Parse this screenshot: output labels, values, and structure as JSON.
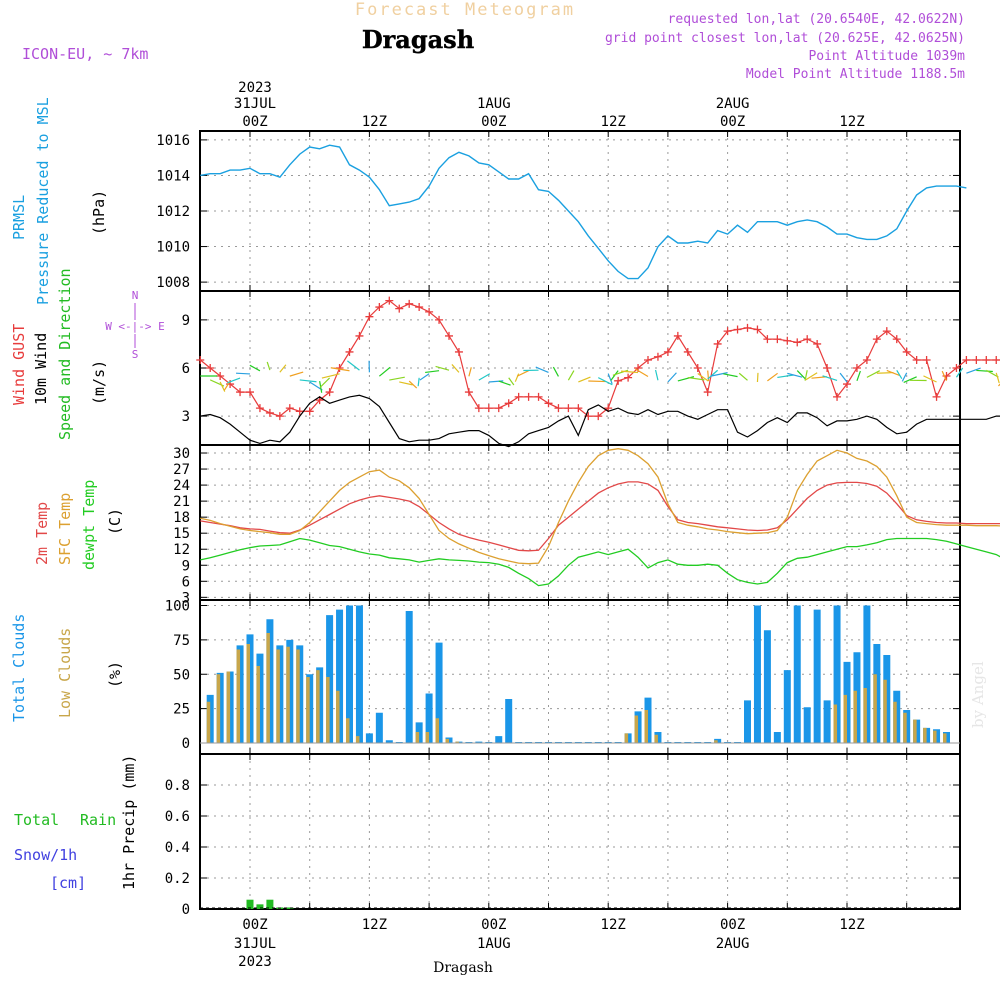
{
  "header": {
    "product": "Forecast Meteogram",
    "location": "Dragash",
    "model": "ICON-EU, ~ 7km",
    "requested": "requested lon,lat (20.6540E, 42.0622N)",
    "gridpoint": "grid point closest lon,lat (20.625E, 42.0625N)",
    "point_alt": "Point Altitude 1039m",
    "model_alt": "Model Point Altitude 1188.5m",
    "watermark": "by Angel",
    "footer_location": "Dragash"
  },
  "time_axis": {
    "top_year": "2023",
    "top_date": "31JUL",
    "ticks": [
      {
        "h": 0,
        "hour": "00Z",
        "date": "31JUL",
        "year": "2023"
      },
      {
        "h": 12,
        "hour": "12Z",
        "date": "",
        "year": ""
      },
      {
        "h": 24,
        "hour": "00Z",
        "date": "1AUG",
        "year": ""
      },
      {
        "h": 36,
        "hour": "12Z",
        "date": "",
        "year": ""
      },
      {
        "h": 48,
        "hour": "00Z",
        "date": "2AUG",
        "year": ""
      },
      {
        "h": 60,
        "hour": "12Z",
        "date": "",
        "year": ""
      }
    ]
  },
  "panel_labels": {
    "pressure": {
      "name": "PRMSL",
      "desc": "Pressure Reduced to MSL",
      "unit": "(hPa)"
    },
    "wind": {
      "gust": "Wind GUST",
      "wind": "10m Wind",
      "dir": "Speed and Direction",
      "unit": "(m/s)",
      "compass_n": "N",
      "compass_ew": "W <-|-> E",
      "compass_s": "S"
    },
    "temp": {
      "t2m": "2m Temp",
      "sfc": "SFC Temp",
      "dew": "dewpt Temp",
      "unit": "(C)"
    },
    "clouds": {
      "total": "Total Clouds",
      "low": "Low Clouds",
      "unit": "(%)"
    },
    "precip": {
      "total": "Total",
      "rain": "Rain",
      "snow": "Snow/1h",
      "cm": "[cm]",
      "axis": "1hr Precip (mm)"
    }
  },
  "colors": {
    "pressure": "#1aa0e0",
    "gust": "#e83c3c",
    "wind": "#000000",
    "t2m": "#e24848",
    "sfc": "#dca030",
    "dew": "#22cc22",
    "total_cloud": "#1a96e8",
    "low_cloud": "#c8a64a",
    "rain": "#22bb22",
    "snow": "#4040e0",
    "purple": "#b04ed8"
  },
  "chart_data": [
    {
      "type": "line",
      "title": "PRMSL Pressure Reduced to MSL",
      "ylabel": "(hPa)",
      "ylim": [
        1007.5,
        1016.5
      ],
      "yticks": [
        1008,
        1010,
        1012,
        1014,
        1016
      ],
      "x_hours": [
        -5,
        -4,
        -3,
        -2,
        -1,
        0,
        1,
        2,
        3,
        4,
        5,
        6,
        7,
        8,
        9,
        10,
        11,
        12,
        13,
        14,
        15,
        16,
        17,
        18,
        19,
        20,
        21,
        22,
        23,
        24,
        25,
        26,
        27,
        28,
        29,
        30,
        31,
        32,
        33,
        34,
        35,
        36,
        37,
        38,
        39,
        40,
        41,
        42,
        43,
        44,
        45,
        46,
        47,
        48,
        49,
        50,
        51,
        52,
        53,
        54,
        55,
        56,
        57,
        58,
        59,
        60,
        61,
        62,
        63,
        64,
        65,
        66,
        67,
        68,
        69,
        70,
        71,
        72,
        73,
        74,
        75,
        76
      ],
      "series": [
        {
          "name": "PRMSL",
          "values": [
            1014.0,
            1014.1,
            1014.1,
            1014.3,
            1014.3,
            1014.4,
            1014.1,
            1014.1,
            1013.9,
            1014.6,
            1015.2,
            1015.6,
            1015.5,
            1015.7,
            1015.6,
            1014.6,
            1014.3,
            1013.9,
            1013.2,
            1012.3,
            1012.4,
            1012.5,
            1012.7,
            1013.4,
            1014.4,
            1015.0,
            1015.3,
            1015.1,
            1014.7,
            1014.6,
            1014.2,
            1013.8,
            1013.8,
            1014.1,
            1013.2,
            1013.1,
            1012.6,
            1012.0,
            1011.4,
            1010.6,
            1009.9,
            1009.2,
            1008.6,
            1008.2,
            1008.2,
            1008.8,
            1010.0,
            1010.6,
            1010.2,
            1010.2,
            1010.3,
            1010.2,
            1010.9,
            1010.7,
            1011.2,
            1010.8,
            1011.4,
            1011.4,
            1011.4,
            1011.2,
            1011.4,
            1011.5,
            1011.4,
            1011.1,
            1010.7,
            1010.7,
            1010.5,
            1010.4,
            1010.4,
            1010.6,
            1011.0,
            1012.0,
            1012.9,
            1013.3,
            1013.4,
            1013.4,
            1013.4,
            1013.3
          ]
        }
      ]
    },
    {
      "type": "line",
      "title": "Wind GUST / 10m Wind Speed and Direction",
      "ylabel": "(m/s)",
      "ylim": [
        1.2,
        10.8
      ],
      "yticks": [
        3,
        6,
        9
      ],
      "x_hours": [
        -5,
        -4,
        -3,
        -2,
        -1,
        0,
        1,
        2,
        3,
        4,
        5,
        6,
        7,
        8,
        9,
        10,
        11,
        12,
        13,
        14,
        15,
        16,
        17,
        18,
        19,
        20,
        21,
        22,
        23,
        24,
        25,
        26,
        27,
        28,
        29,
        30,
        31,
        32,
        33,
        34,
        35,
        36,
        37,
        38,
        39,
        40,
        41,
        42,
        43,
        44,
        45,
        46,
        47,
        48,
        49,
        50,
        51,
        52,
        53,
        54,
        55,
        56,
        57,
        58,
        59,
        60,
        61,
        62,
        63,
        64,
        65,
        66,
        67,
        68,
        69,
        70,
        71,
        72,
        73,
        74,
        75,
        76
      ],
      "series": [
        {
          "name": "Wind GUST",
          "values": [
            6.5,
            6.0,
            5.5,
            5.0,
            4.5,
            4.5,
            3.5,
            3.2,
            3.0,
            3.5,
            3.3,
            3.3,
            4.0,
            4.5,
            6.0,
            7.0,
            8.0,
            9.2,
            9.8,
            10.2,
            9.7,
            10.0,
            9.8,
            9.5,
            9.0,
            8.0,
            7.0,
            4.5,
            3.5,
            3.5,
            3.5,
            3.8,
            4.2,
            4.2,
            4.2,
            3.8,
            3.5,
            3.5,
            3.5,
            3.0,
            3.0,
            3.5,
            5.2,
            5.4,
            6.0,
            6.5,
            6.7,
            7.0,
            8.0,
            7.0,
            6.0,
            4.5,
            7.5,
            8.3,
            8.4,
            8.5,
            8.4,
            7.8,
            7.8,
            7.7,
            7.6,
            7.8,
            7.5,
            6.0,
            4.2,
            5.0,
            6.0,
            6.5,
            7.8,
            8.3,
            7.8,
            7.0,
            6.5,
            6.5,
            4.2,
            5.5,
            6.0,
            6.5,
            6.5,
            6.5,
            6.5,
            6.5
          ]
        },
        {
          "name": "10m Wind",
          "values": [
            3.0,
            3.1,
            2.9,
            2.5,
            2.0,
            1.5,
            1.3,
            1.5,
            1.4,
            2.0,
            3.0,
            3.8,
            4.2,
            3.8,
            4.0,
            4.2,
            4.3,
            4.1,
            3.6,
            2.6,
            1.6,
            1.4,
            1.5,
            1.5,
            1.6,
            1.9,
            2.0,
            2.1,
            2.1,
            1.8,
            1.3,
            1.1,
            1.4,
            1.9,
            2.1,
            2.3,
            2.7,
            3.0,
            1.8,
            3.4,
            3.7,
            3.3,
            3.5,
            3.2,
            3.1,
            3.4,
            3.1,
            3.3,
            3.3,
            3.0,
            2.8,
            3.1,
            3.4,
            3.4,
            2.0,
            1.7,
            2.1,
            2.6,
            2.9,
            2.6,
            3.2,
            3.2,
            2.9,
            2.4,
            2.7,
            2.7,
            2.8,
            3.0,
            2.8,
            2.3,
            1.9,
            2.0,
            2.5,
            2.8,
            2.8,
            2.8,
            2.8,
            2.8,
            2.8,
            2.8,
            3.0,
            3.0
          ]
        }
      ],
      "arrows": "wind direction arrows along the 10m wind trace, colored by speed"
    },
    {
      "type": "line",
      "title": "2m Temp / SFC Temp / dewpt Temp",
      "ylabel": "(C)",
      "ylim": [
        2.5,
        31.5
      ],
      "yticks": [
        3,
        6,
        9,
        12,
        15,
        18,
        21,
        24,
        27,
        30
      ],
      "x_hours": [
        -5,
        -4,
        -3,
        -2,
        -1,
        0,
        1,
        2,
        3,
        4,
        5,
        6,
        7,
        8,
        9,
        10,
        11,
        12,
        13,
        14,
        15,
        16,
        17,
        18,
        19,
        20,
        21,
        22,
        23,
        24,
        25,
        26,
        27,
        28,
        29,
        30,
        31,
        32,
        33,
        34,
        35,
        36,
        37,
        38,
        39,
        40,
        41,
        42,
        43,
        44,
        45,
        46,
        47,
        48,
        49,
        50,
        51,
        52,
        53,
        54,
        55,
        56,
        57,
        58,
        59,
        60,
        61,
        62,
        63,
        64,
        65,
        66,
        67,
        68,
        69,
        70,
        71,
        72,
        73,
        74,
        75,
        76
      ],
      "series": [
        {
          "name": "2m Temp",
          "values": [
            17.3,
            17.0,
            16.7,
            16.4,
            16.0,
            15.8,
            15.7,
            15.4,
            15.1,
            15.0,
            15.6,
            16.5,
            17.5,
            18.5,
            19.5,
            20.5,
            21.2,
            21.7,
            22.0,
            21.7,
            21.4,
            21.0,
            20.0,
            18.5,
            17.0,
            15.8,
            14.8,
            14.2,
            13.7,
            13.3,
            12.8,
            12.3,
            11.8,
            11.7,
            11.8,
            14.0,
            16.5,
            18.0,
            19.5,
            21.0,
            22.5,
            23.5,
            24.2,
            24.6,
            24.6,
            24.2,
            23.0,
            20.0,
            17.5,
            17.0,
            16.8,
            16.5,
            16.2,
            16.0,
            15.8,
            15.6,
            15.5,
            15.6,
            16.0,
            17.5,
            19.5,
            21.5,
            23.0,
            24.0,
            24.4,
            24.5,
            24.5,
            24.3,
            23.8,
            22.5,
            20.5,
            18.3,
            17.5,
            17.2,
            17.0,
            16.9,
            16.9,
            16.8,
            16.8,
            16.8,
            16.8,
            16.8
          ]
        },
        {
          "name": "SFC Temp",
          "values": [
            17.8,
            17.4,
            16.8,
            16.3,
            15.8,
            15.5,
            15.3,
            15.1,
            14.8,
            14.8,
            15.5,
            17.0,
            19.0,
            21.0,
            23.0,
            24.5,
            25.5,
            26.5,
            26.8,
            25.5,
            24.8,
            23.5,
            21.5,
            18.5,
            15.5,
            14.0,
            13.0,
            12.2,
            11.4,
            10.8,
            10.2,
            9.8,
            9.4,
            9.3,
            9.4,
            12.5,
            17.0,
            21.0,
            24.5,
            27.5,
            29.5,
            30.5,
            30.8,
            30.5,
            29.5,
            28.0,
            25.5,
            20.5,
            17.0,
            16.5,
            16.2,
            15.8,
            15.6,
            15.3,
            15.1,
            14.9,
            15.0,
            15.1,
            15.5,
            18.0,
            23.0,
            26.0,
            28.5,
            29.5,
            30.5,
            30.0,
            29.0,
            28.5,
            27.5,
            25.5,
            22.0,
            18.0,
            17.0,
            16.8,
            16.6,
            16.5,
            16.5,
            16.5,
            16.4,
            16.4,
            16.4,
            16.3
          ]
        },
        {
          "name": "dewpt Temp",
          "values": [
            10.0,
            10.4,
            10.9,
            11.4,
            11.9,
            12.3,
            12.6,
            12.7,
            12.8,
            13.4,
            14.0,
            13.7,
            13.2,
            12.7,
            12.5,
            12.0,
            11.5,
            11.1,
            10.9,
            10.4,
            10.2,
            10.0,
            9.6,
            9.9,
            10.2,
            10.0,
            9.9,
            9.8,
            9.6,
            9.5,
            9.2,
            8.6,
            7.5,
            6.5,
            5.2,
            5.5,
            7.0,
            9.0,
            10.5,
            11.0,
            11.5,
            11.0,
            11.5,
            12.0,
            10.5,
            8.5,
            9.5,
            10.0,
            9.2,
            9.0,
            9.0,
            9.2,
            9.0,
            7.5,
            6.3,
            5.8,
            5.5,
            5.8,
            7.5,
            9.5,
            10.3,
            10.5,
            11.0,
            11.5,
            12.0,
            12.5,
            12.5,
            12.8,
            13.2,
            13.8,
            14.0,
            14.0,
            14.0,
            14.0,
            13.8,
            13.5,
            13.0,
            12.5,
            12.0,
            11.5,
            11.0,
            10.0
          ]
        }
      ]
    },
    {
      "type": "bar",
      "title": "Total Clouds / Low Clouds",
      "ylabel": "(%)",
      "ylim": [
        -8,
        104
      ],
      "yticks": [
        0,
        25,
        50,
        75,
        100
      ],
      "x_hours": [
        -5,
        -4,
        -3,
        -2,
        -1,
        0,
        1,
        2,
        3,
        4,
        5,
        6,
        7,
        8,
        9,
        10,
        11,
        12,
        13,
        14,
        15,
        16,
        17,
        18,
        19,
        20,
        21,
        22,
        23,
        24,
        25,
        26,
        27,
        28,
        29,
        30,
        31,
        32,
        33,
        34,
        35,
        36,
        37,
        38,
        39,
        40,
        41,
        42,
        43,
        44,
        45,
        46,
        47,
        48,
        49,
        50,
        51,
        52,
        53,
        54,
        55,
        56,
        57,
        58,
        59,
        60,
        61,
        62,
        63,
        64,
        65,
        66,
        67,
        68,
        69,
        70,
        71,
        72,
        73,
        74,
        75,
        76
      ],
      "series": [
        {
          "name": "Total Clouds",
          "values": [
            100,
            35,
            51,
            52,
            71,
            79,
            65,
            90,
            71,
            75,
            71,
            50,
            55,
            93,
            97,
            100,
            100,
            7,
            22,
            2,
            0,
            96,
            15,
            36,
            73,
            4,
            1,
            0,
            1,
            0,
            5,
            32,
            0,
            0,
            0,
            0,
            0,
            0,
            0,
            0,
            0,
            0,
            0,
            7,
            23,
            33,
            8,
            0,
            0,
            0,
            0,
            0,
            3,
            0,
            0,
            31,
            100,
            82,
            8,
            53,
            100,
            26,
            97,
            31,
            100,
            59,
            66,
            100,
            72,
            64,
            38,
            24,
            17,
            11,
            10,
            8,
            0,
            0,
            0,
            0,
            0,
            0
          ]
        },
        {
          "name": "Low Clouds",
          "values": [
            15,
            30,
            50,
            52,
            68,
            72,
            56,
            80,
            68,
            70,
            68,
            48,
            53,
            48,
            38,
            18,
            5,
            0,
            0,
            0,
            0,
            0,
            8,
            8,
            18,
            3,
            1,
            0,
            0,
            0,
            0,
            0,
            0,
            0,
            0,
            0,
            0,
            0,
            0,
            0,
            0,
            0,
            0,
            7,
            20,
            24,
            6,
            0,
            0,
            0,
            0,
            0,
            2,
            0,
            0,
            0,
            0,
            0,
            0,
            0,
            0,
            0,
            0,
            0,
            28,
            35,
            38,
            40,
            50,
            46,
            30,
            22,
            17,
            11,
            9,
            7,
            0,
            0,
            0,
            0,
            0,
            0
          ]
        }
      ]
    },
    {
      "type": "bar",
      "title": "1hr Precip (mm)",
      "ylabel": "1hr Precip (mm)",
      "ylim": [
        0,
        1.0
      ],
      "yticks": [
        0,
        0.2,
        0.4,
        0.6,
        0.8
      ],
      "x_hours": [
        0,
        1,
        2,
        3,
        4,
        5
      ],
      "series": [
        {
          "name": "Total Rain",
          "values": [
            0.06,
            0.03,
            0.06,
            0.01,
            0.01,
            0.0
          ]
        },
        {
          "name": "Snow/1h",
          "values": [
            0,
            0,
            0,
            0,
            0,
            0
          ]
        }
      ]
    }
  ]
}
